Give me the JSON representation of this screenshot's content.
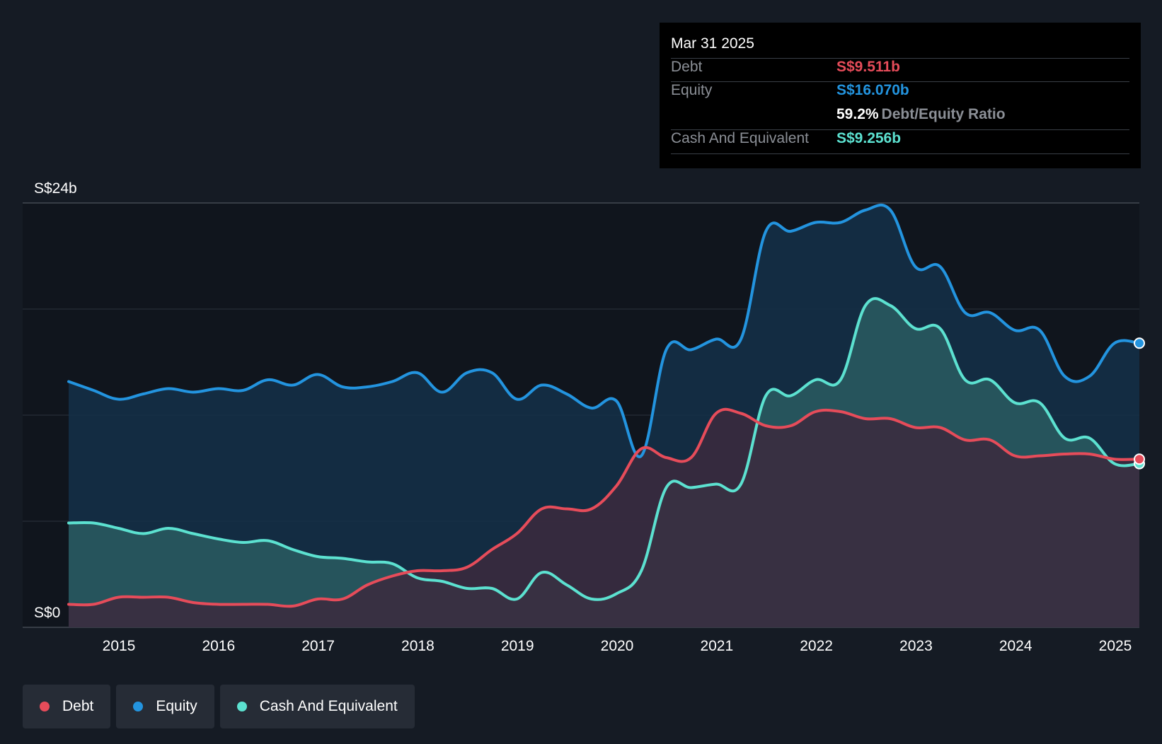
{
  "chart_data": {
    "type": "area",
    "y_unit": "S$ billions",
    "ylim": [
      0,
      24
    ],
    "y_tick_labels": [
      "S$24b",
      "S$0"
    ],
    "x_tick_labels": [
      "2015",
      "2016",
      "2017",
      "2018",
      "2019",
      "2020",
      "2021",
      "2022",
      "2023",
      "2024",
      "2025"
    ],
    "xlim": [
      2014.5,
      2025.25
    ],
    "series": [
      {
        "name": "Equity",
        "color": "#2394df",
        "fill": "#143049",
        "points": [
          [
            2014.5,
            13.9
          ],
          [
            2014.75,
            13.4
          ],
          [
            2015.0,
            12.9
          ],
          [
            2015.25,
            13.2
          ],
          [
            2015.5,
            13.5
          ],
          [
            2015.75,
            13.3
          ],
          [
            2016.0,
            13.5
          ],
          [
            2016.25,
            13.4
          ],
          [
            2016.5,
            14.0
          ],
          [
            2016.75,
            13.7
          ],
          [
            2017.0,
            14.3
          ],
          [
            2017.25,
            13.6
          ],
          [
            2017.5,
            13.6
          ],
          [
            2017.75,
            13.9
          ],
          [
            2018.0,
            14.4
          ],
          [
            2018.25,
            13.3
          ],
          [
            2018.5,
            14.4
          ],
          [
            2018.75,
            14.4
          ],
          [
            2019.0,
            12.9
          ],
          [
            2019.25,
            13.7
          ],
          [
            2019.5,
            13.2
          ],
          [
            2019.75,
            12.4
          ],
          [
            2020.0,
            12.8
          ],
          [
            2020.25,
            9.7
          ],
          [
            2020.5,
            15.7
          ],
          [
            2020.75,
            15.7
          ],
          [
            2021.0,
            16.3
          ],
          [
            2021.25,
            16.3
          ],
          [
            2021.5,
            22.4
          ],
          [
            2021.75,
            22.4
          ],
          [
            2022.0,
            22.9
          ],
          [
            2022.25,
            22.9
          ],
          [
            2022.5,
            23.6
          ],
          [
            2022.75,
            23.6
          ],
          [
            2023.0,
            20.4
          ],
          [
            2023.25,
            20.4
          ],
          [
            2023.5,
            17.8
          ],
          [
            2023.75,
            17.8
          ],
          [
            2024.0,
            16.8
          ],
          [
            2024.25,
            16.8
          ],
          [
            2024.5,
            14.2
          ],
          [
            2024.75,
            14.2
          ],
          [
            2025.0,
            16.07
          ],
          [
            2025.25,
            16.07
          ]
        ]
      },
      {
        "name": "Cash And Equivalent",
        "color": "#5ce1d0",
        "fill": "#2a5c60",
        "points": [
          [
            2014.5,
            5.9
          ],
          [
            2014.75,
            5.9
          ],
          [
            2015.0,
            5.6
          ],
          [
            2015.25,
            5.3
          ],
          [
            2015.5,
            5.6
          ],
          [
            2015.75,
            5.3
          ],
          [
            2016.0,
            5.0
          ],
          [
            2016.25,
            4.8
          ],
          [
            2016.5,
            4.9
          ],
          [
            2016.75,
            4.4
          ],
          [
            2017.0,
            4.0
          ],
          [
            2017.25,
            3.9
          ],
          [
            2017.5,
            3.7
          ],
          [
            2017.75,
            3.6
          ],
          [
            2018.0,
            2.8
          ],
          [
            2018.25,
            2.6
          ],
          [
            2018.5,
            2.2
          ],
          [
            2018.75,
            2.2
          ],
          [
            2019.0,
            1.6
          ],
          [
            2019.25,
            3.1
          ],
          [
            2019.5,
            2.4
          ],
          [
            2019.75,
            1.6
          ],
          [
            2020.0,
            1.9
          ],
          [
            2020.25,
            3.2
          ],
          [
            2020.5,
            7.9
          ],
          [
            2020.75,
            7.9
          ],
          [
            2021.0,
            8.1
          ],
          [
            2021.25,
            8.1
          ],
          [
            2021.5,
            13.1
          ],
          [
            2021.75,
            13.1
          ],
          [
            2022.0,
            14.0
          ],
          [
            2022.25,
            14.0
          ],
          [
            2022.5,
            18.2
          ],
          [
            2022.75,
            18.2
          ],
          [
            2023.0,
            16.9
          ],
          [
            2023.25,
            16.9
          ],
          [
            2023.5,
            14.0
          ],
          [
            2023.75,
            14.0
          ],
          [
            2024.0,
            12.7
          ],
          [
            2024.25,
            12.7
          ],
          [
            2024.5,
            10.7
          ],
          [
            2024.75,
            10.7
          ],
          [
            2025.0,
            9.256
          ],
          [
            2025.25,
            9.256
          ]
        ]
      },
      {
        "name": "Debt",
        "color": "#e64c5a",
        "fill": "#3c2a3d",
        "points": [
          [
            2014.5,
            1.3
          ],
          [
            2014.75,
            1.3
          ],
          [
            2015.0,
            1.7
          ],
          [
            2015.25,
            1.7
          ],
          [
            2015.5,
            1.7
          ],
          [
            2015.75,
            1.4
          ],
          [
            2016.0,
            1.3
          ],
          [
            2016.25,
            1.3
          ],
          [
            2016.5,
            1.3
          ],
          [
            2016.75,
            1.2
          ],
          [
            2017.0,
            1.6
          ],
          [
            2017.25,
            1.6
          ],
          [
            2017.5,
            2.4
          ],
          [
            2017.75,
            2.9
          ],
          [
            2018.0,
            3.2
          ],
          [
            2018.25,
            3.2
          ],
          [
            2018.5,
            3.4
          ],
          [
            2018.75,
            4.4
          ],
          [
            2019.0,
            5.3
          ],
          [
            2019.25,
            6.7
          ],
          [
            2019.5,
            6.7
          ],
          [
            2019.75,
            6.7
          ],
          [
            2020.0,
            8.0
          ],
          [
            2020.25,
            10.1
          ],
          [
            2020.5,
            9.6
          ],
          [
            2020.75,
            9.6
          ],
          [
            2021.0,
            12.1
          ],
          [
            2021.25,
            12.1
          ],
          [
            2021.5,
            11.4
          ],
          [
            2021.75,
            11.4
          ],
          [
            2022.0,
            12.2
          ],
          [
            2022.25,
            12.2
          ],
          [
            2022.5,
            11.8
          ],
          [
            2022.75,
            11.8
          ],
          [
            2023.0,
            11.3
          ],
          [
            2023.25,
            11.3
          ],
          [
            2023.5,
            10.6
          ],
          [
            2023.75,
            10.6
          ],
          [
            2024.0,
            9.7
          ],
          [
            2024.25,
            9.7
          ],
          [
            2024.5,
            9.8
          ],
          [
            2024.75,
            9.8
          ],
          [
            2025.0,
            9.511
          ],
          [
            2025.25,
            9.511
          ]
        ]
      }
    ]
  },
  "tooltip": {
    "date": "Mar 31 2025",
    "debt_label": "Debt",
    "debt_value": "S$9.511b",
    "equity_label": "Equity",
    "equity_value": "S$16.070b",
    "ratio_value": "59.2%",
    "ratio_label": "Debt/Equity Ratio",
    "cash_label": "Cash And Equivalent",
    "cash_value": "S$9.256b"
  },
  "legend": [
    {
      "label": "Debt",
      "color": "#e64c5a"
    },
    {
      "label": "Equity",
      "color": "#2394df"
    },
    {
      "label": "Cash And Equivalent",
      "color": "#5ce1d0"
    }
  ],
  "colors": {
    "debt": "#e64c5a",
    "equity": "#2394df",
    "cash": "#5ce1d0"
  }
}
